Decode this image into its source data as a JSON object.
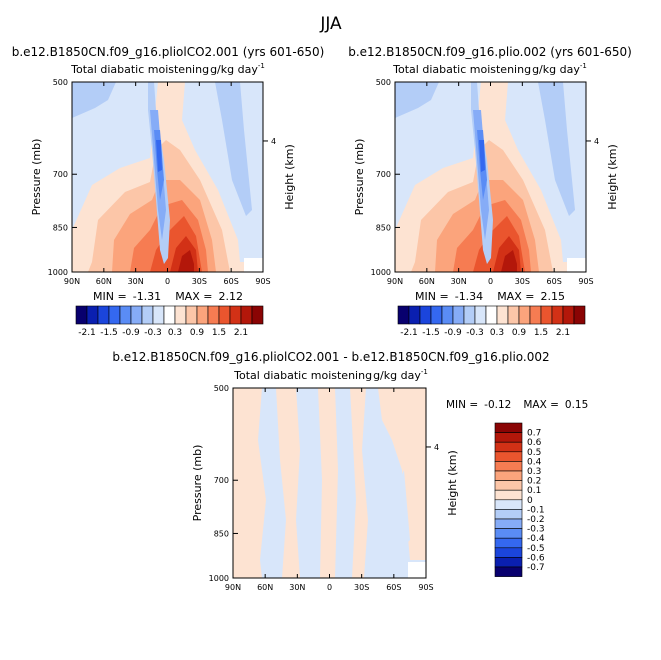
{
  "page_title": "JJA",
  "chart_data": [
    {
      "type": "heatmap",
      "case": "b.e12.B1850CN.f09_g16.pliolCO2.001 (yrs 601-650)",
      "title": "Total diabatic moistening",
      "units": "g/kg day",
      "units_exp": "-1",
      "xlabel": "",
      "ylabel": "Pressure (mb)",
      "y2label": "Height (km)",
      "xticks": [
        "90N",
        "60N",
        "30N",
        "0",
        "30S",
        "60S",
        "90S"
      ],
      "yticks": [
        "500",
        "700",
        "850",
        "1000"
      ],
      "y2ticks": [
        "4"
      ],
      "ylim": [
        1000,
        500
      ],
      "stats": {
        "min_label": "MIN =",
        "min": "-1.31",
        "max_label": "MAX =",
        "max": "2.12"
      }
    },
    {
      "type": "heatmap",
      "case": "b.e12.B1850CN.f09_g16.plio.002 (yrs 601-650)",
      "title": "Total diabatic moistening",
      "units": "g/kg day",
      "units_exp": "-1",
      "xlabel": "",
      "ylabel": "Pressure (mb)",
      "y2label": "Height (km)",
      "xticks": [
        "90N",
        "60N",
        "30N",
        "0",
        "30S",
        "60S",
        "90S"
      ],
      "yticks": [
        "500",
        "700",
        "850",
        "1000"
      ],
      "y2ticks": [
        "4"
      ],
      "ylim": [
        1000,
        500
      ],
      "stats": {
        "min_label": "MIN =",
        "min": "-1.34",
        "max_label": "MAX =",
        "max": "2.15"
      }
    },
    {
      "type": "heatmap",
      "case": "b.e12.B1850CN.f09_g16.pliolCO2.001 - b.e12.B1850CN.f09_g16.plio.002",
      "title": "Total diabatic moistening",
      "units": "g/kg day",
      "units_exp": "-1",
      "xlabel": "",
      "ylabel": "Pressure (mb)",
      "y2label": "Height (km)",
      "xticks": [
        "90N",
        "60N",
        "30N",
        "0",
        "30S",
        "60S",
        "90S"
      ],
      "yticks": [
        "500",
        "700",
        "850",
        "1000"
      ],
      "y2ticks": [
        "4"
      ],
      "ylim": [
        1000,
        500
      ],
      "stats": {
        "min_label": "MIN =",
        "min": "-0.12",
        "max_label": "MAX =",
        "max": "0.15"
      }
    }
  ],
  "colorbar_top": {
    "labels": [
      "-2.1",
      "-1.5",
      "-0.9",
      "-0.3",
      "0.3",
      "0.9",
      "1.5",
      "2.1"
    ],
    "colors": [
      "#08006e",
      "#0a1fb0",
      "#1b45dc",
      "#3468f0",
      "#5a8cf5",
      "#86acf7",
      "#b3cdf7",
      "#d8e6fa",
      "#ffffff",
      "#fde3d2",
      "#fcc6a8",
      "#fba47c",
      "#f67c52",
      "#ea552e",
      "#d23116",
      "#b3170a",
      "#8a0404"
    ]
  },
  "colorbar_diff": {
    "labels": [
      "0.7",
      "0.6",
      "0.5",
      "0.4",
      "0.3",
      "0.2",
      "0.1",
      "0",
      "-0.1",
      "-0.2",
      "-0.3",
      "-0.4",
      "-0.5",
      "-0.6",
      "-0.7"
    ],
    "colors": [
      "#8a0404",
      "#b3170a",
      "#d23116",
      "#ea552e",
      "#f67c52",
      "#fba47c",
      "#fcc6a8",
      "#fde3d2",
      "#d8e6fa",
      "#b3cdf7",
      "#86acf7",
      "#5a8cf5",
      "#3468f0",
      "#1b45dc",
      "#0a1fb0",
      "#08006e"
    ]
  }
}
